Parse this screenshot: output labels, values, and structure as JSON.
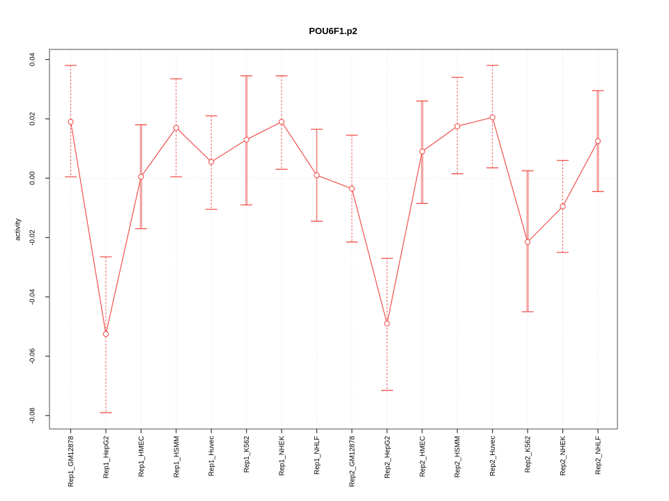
{
  "figure": {
    "title": "POU6F1.p2"
  },
  "chart_data": {
    "type": "line",
    "title": "POU6F1.p2",
    "xlabel": "",
    "ylabel": "activity",
    "legend": "none",
    "marker": "open-circle",
    "categories": [
      "Rep1_GM12878",
      "Rep1_HepG2",
      "Rep1_HMEC",
      "Rep1_HSMM",
      "Rep1_Huvec",
      "Rep1_K562",
      "Rep1_NHEK",
      "Rep1_NHLF",
      "Rep2_GM12878",
      "Rep2_HepG2",
      "Rep2_HMEC",
      "Rep2_HSMM",
      "Rep2_Huvec",
      "Rep2_K562",
      "Rep2_NHEK",
      "Rep2_NHLF"
    ],
    "series": [
      {
        "name": "activity",
        "values": [
          0.019,
          -0.0525,
          0.0005,
          0.017,
          0.0055,
          0.013,
          0.019,
          0.001,
          -0.0035,
          -0.049,
          0.009,
          0.0175,
          0.0205,
          -0.0215,
          -0.0095,
          0.0125
        ]
      }
    ],
    "error_low": [
      0.0005,
      -0.079,
      -0.017,
      0.0005,
      -0.0105,
      -0.009,
      0.003,
      -0.0145,
      -0.0215,
      -0.0715,
      -0.0085,
      0.0015,
      0.0035,
      -0.045,
      -0.025,
      -0.0045
    ],
    "error_high": [
      0.038,
      -0.0265,
      0.018,
      0.0335,
      0.021,
      0.0345,
      0.0345,
      0.0165,
      0.0145,
      -0.027,
      0.026,
      0.034,
      0.038,
      0.0025,
      0.006,
      0.0295
    ],
    "error_bar_styles": [
      "dashed",
      "dashed",
      "thick",
      "dashed",
      "dashed",
      "thick",
      "dashed",
      "solid",
      "dashed",
      "dashed",
      "thick",
      "dashed",
      "dashed",
      "thick",
      "dashed",
      "thick"
    ],
    "ytick_values": [
      0.04,
      0.02,
      0.0,
      -0.02,
      -0.04,
      -0.06,
      -0.08
    ],
    "ylim": [
      -0.0845,
      0.0434
    ],
    "grid": {
      "vertical_per_category": true,
      "horizontal_zero_line": true
    },
    "colors": {
      "series": "#ef504c",
      "bar_thick": "#f5a6a4",
      "bar_solid": "#f37f7c",
      "grid": "#dcdcdc",
      "box": "#7f7f7f",
      "tick": "#333333",
      "text": "#000000",
      "background": "#ffffff"
    }
  }
}
